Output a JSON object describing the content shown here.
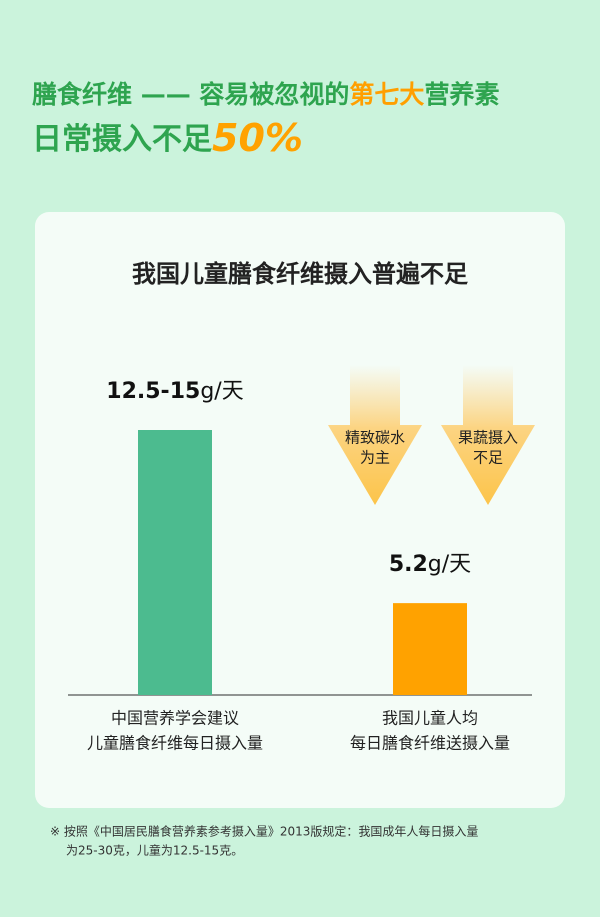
{
  "header": {
    "title_parts": [
      "膳食纤维 —— 容易被忽视的",
      "第七大",
      "营养素"
    ],
    "subtitle": "日常摄入不足",
    "highlight": "50%"
  },
  "chart_data": {
    "type": "bar",
    "title": "我国儿童膳食纤维摄入普遍不足",
    "categories": [
      [
        "中国营养学会建议",
        "儿童膳食纤维每日摄入量"
      ],
      [
        "我国儿童人均",
        "每日膳食纤维送摄入量"
      ]
    ],
    "values": [
      15,
      5.2
    ],
    "value_labels": [
      "12.5-15",
      "5.2"
    ],
    "unit": "g/天",
    "colors": [
      "#4cbb8f",
      "#ffa200"
    ],
    "ylim": [
      0,
      15
    ],
    "annotations": [
      [
        "精致碳水",
        "为主"
      ],
      [
        "果蔬摄入",
        "不足"
      ]
    ]
  },
  "footnote": [
    "※ 按照《中国居民膳食营养素参考摄入量》2013版规定：我国成年人每日摄入量",
    "为25-30克，儿童为12.5-15克。"
  ]
}
